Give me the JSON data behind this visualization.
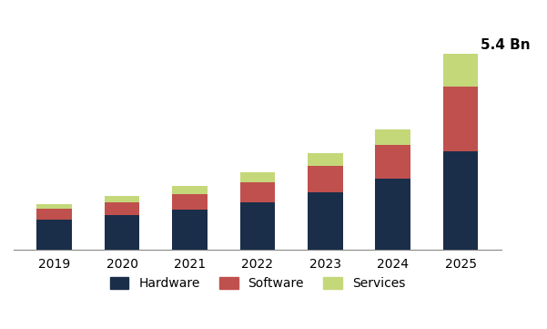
{
  "years": [
    "2019",
    "2020",
    "2021",
    "2022",
    "2023",
    "2024",
    "2025"
  ],
  "hardware": [
    0.82,
    0.95,
    1.1,
    1.3,
    1.58,
    1.95,
    2.7
  ],
  "software": [
    0.3,
    0.35,
    0.43,
    0.55,
    0.72,
    0.92,
    1.8
  ],
  "services": [
    0.13,
    0.18,
    0.22,
    0.28,
    0.35,
    0.45,
    0.9
  ],
  "hardware_color": "#1a2e4a",
  "software_color": "#c0504d",
  "services_color": "#c4d87a",
  "annotation_text": "5.4 Bn",
  "annotation_year_idx": 6,
  "bar_width": 0.52,
  "ylim": [
    0,
    6.5
  ],
  "background_color": "#ffffff",
  "legend_labels": [
    "Hardware",
    "Software",
    "Services"
  ]
}
